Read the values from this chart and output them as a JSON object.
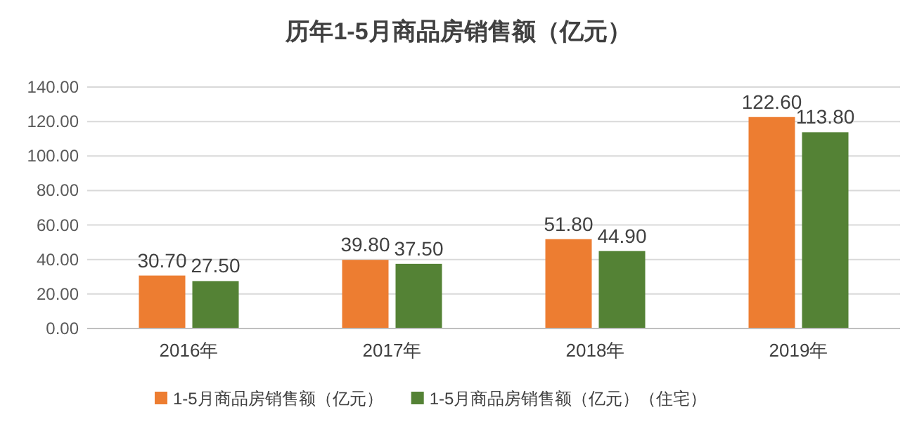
{
  "chart_data": {
    "type": "bar",
    "title": "历年1-5月商品房销售额（亿元）",
    "categories": [
      "2016年",
      "2017年",
      "2018年",
      "2019年"
    ],
    "series": [
      {
        "name": "1-5月商品房销售额（亿元）",
        "color": "#ed7d31",
        "values": [
          30.7,
          39.8,
          51.8,
          122.6
        ],
        "value_labels": [
          "30.70",
          "39.80",
          "51.80",
          "122.60"
        ]
      },
      {
        "name": "1-5月商品房销售额（亿元）（住宅）",
        "color": "#548235",
        "values": [
          27.5,
          37.5,
          44.9,
          113.8
        ],
        "value_labels": [
          "27.50",
          "37.50",
          "44.90",
          "113.80"
        ]
      }
    ],
    "ylim": [
      0,
      140
    ],
    "yticks": [
      {
        "value": 0,
        "label": "0.00"
      },
      {
        "value": 20,
        "label": "20.00"
      },
      {
        "value": 40,
        "label": "40.00"
      },
      {
        "value": 60,
        "label": "60.00"
      },
      {
        "value": 80,
        "label": "80.00"
      },
      {
        "value": 100,
        "label": "100.00"
      },
      {
        "value": 120,
        "label": "120.00"
      },
      {
        "value": 140,
        "label": "140.00"
      }
    ],
    "grid": "y",
    "legend": "bottom"
  }
}
